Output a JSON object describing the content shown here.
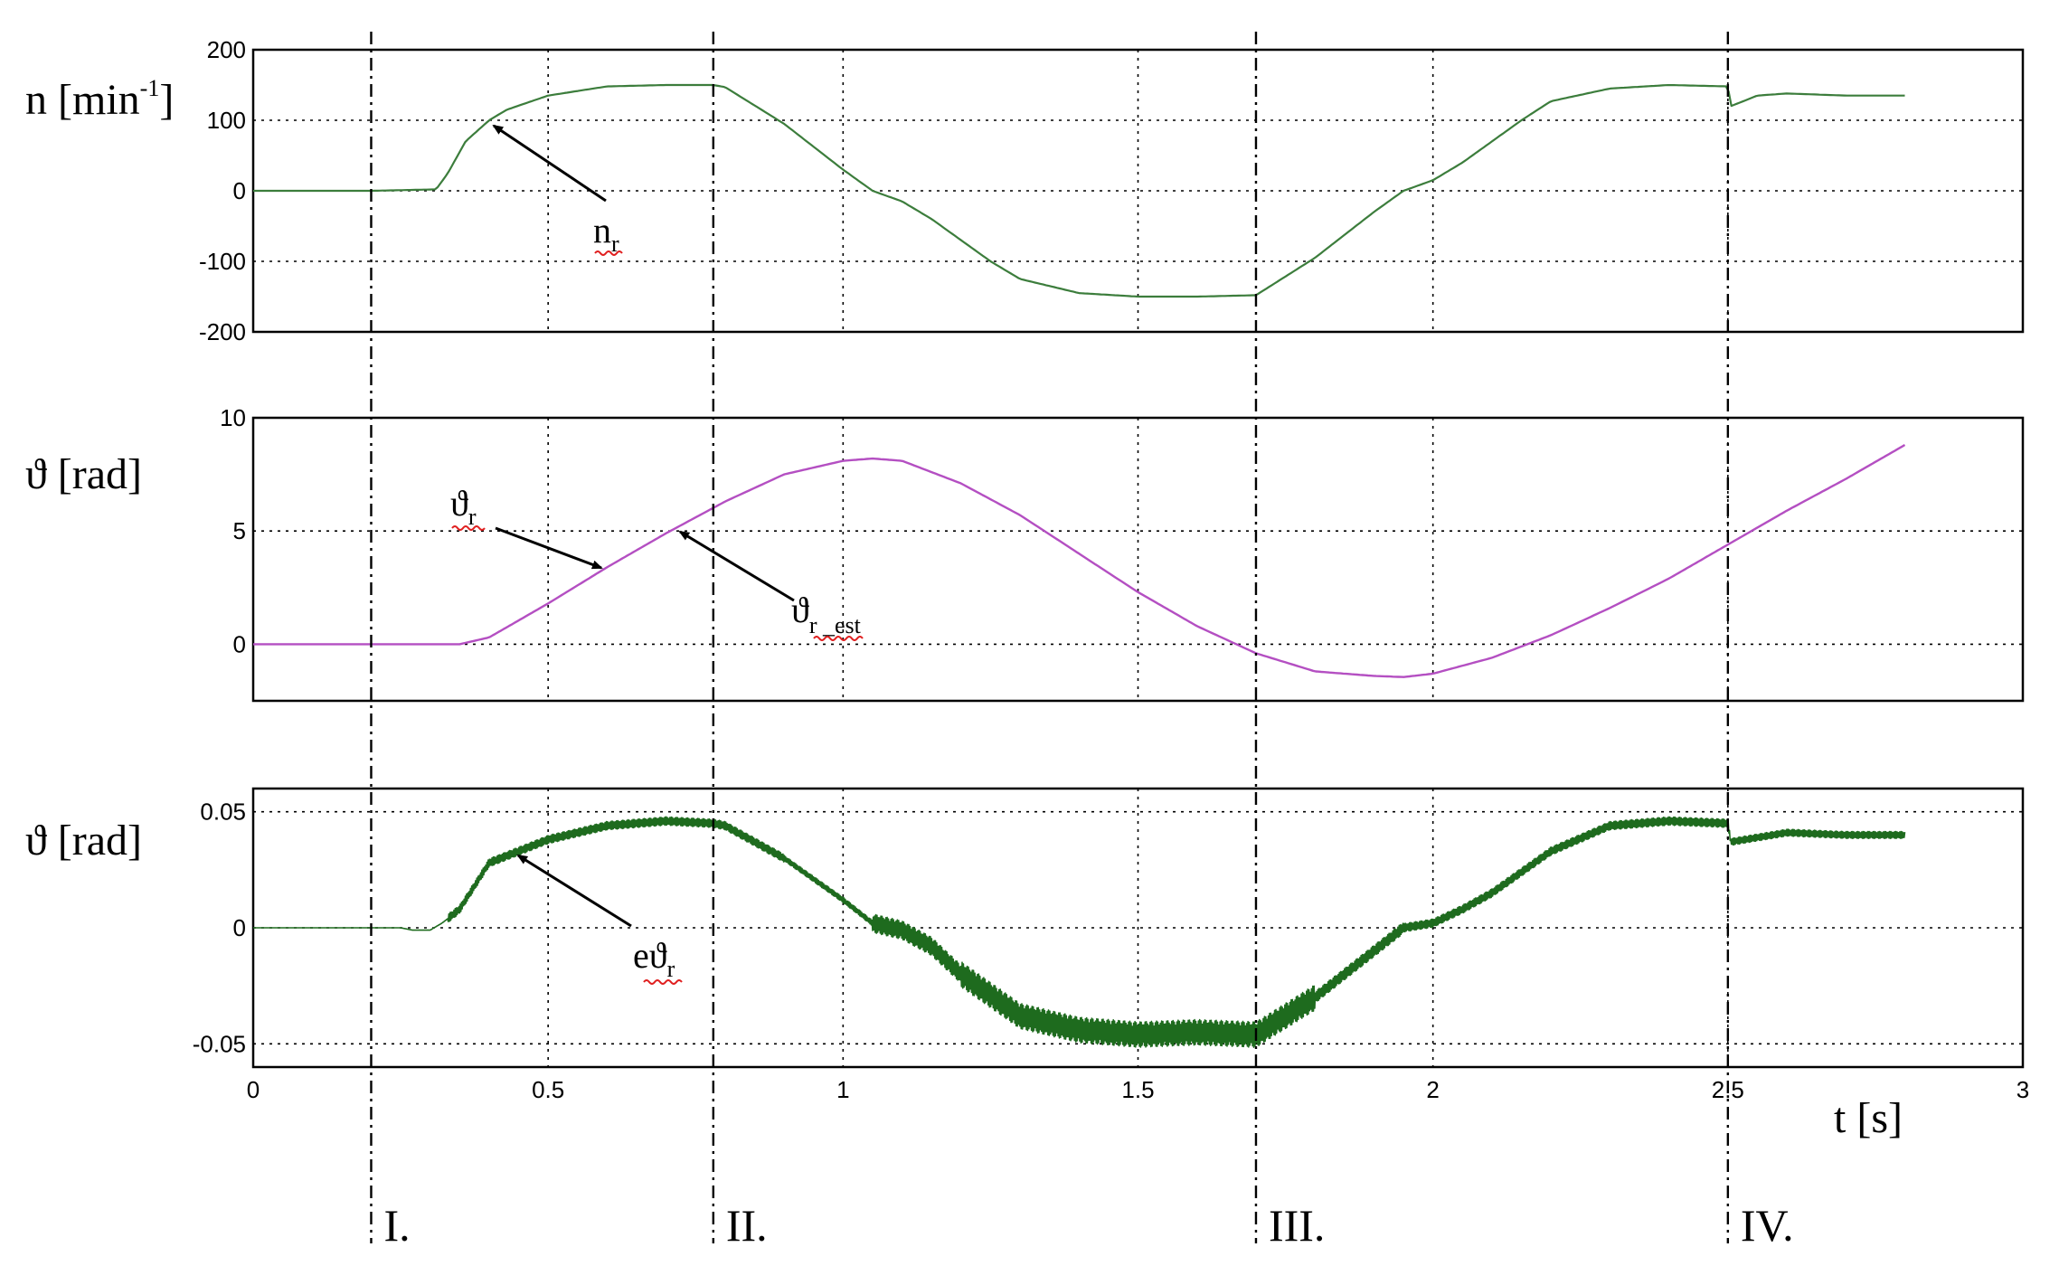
{
  "colors": {
    "speed": "#3c7d3c",
    "angle": "#b44fc2",
    "error": "#1e6b1e",
    "axis": "#000000",
    "grid": "#000000",
    "spell_underline": "#e02020"
  },
  "xaxis": {
    "min": 0,
    "max": 3,
    "ticks": [
      0,
      0.5,
      1,
      1.5,
      2,
      2.5,
      3
    ],
    "tick_labels": [
      "0",
      "0.5",
      "1",
      "1.5",
      "2",
      "2.5",
      "3"
    ],
    "label": "t [s]"
  },
  "phases": {
    "boundaries_s": [
      0.2,
      0.78,
      1.7,
      2.5
    ],
    "labels": [
      "I.",
      "II.",
      "III.",
      "IV."
    ]
  },
  "panels": {
    "speed": {
      "ylabel_main": "n [min",
      "ylabel_sup": "-1",
      "ylabel_end": "]",
      "ylim": [
        -200,
        200
      ],
      "yticks": [
        200,
        100,
        0,
        -100,
        -200
      ],
      "ytick_labels": [
        "200",
        "100",
        "0",
        "-100",
        "-200"
      ],
      "annotation": {
        "main": "n",
        "sub": "r"
      }
    },
    "angle": {
      "ylabel": "ϑ [rad]",
      "ylim": [
        -2.5,
        10
      ],
      "yticks": [
        10,
        5,
        0
      ],
      "ytick_labels": [
        "10",
        "5",
        "0"
      ],
      "annotation_1": {
        "main": "ϑ",
        "sub": "r"
      },
      "annotation_2": {
        "main": "ϑ",
        "sub": "r _est"
      }
    },
    "error": {
      "ylabel": "ϑ [rad]",
      "ylim": [
        -0.06,
        0.06
      ],
      "yticks": [
        0.05,
        0,
        -0.05
      ],
      "ytick_labels": [
        "0.05",
        "0",
        "-0.05"
      ],
      "annotation": {
        "main": "eϑ",
        "sub": "r"
      }
    }
  },
  "chart_data": [
    {
      "type": "line",
      "ylabel": "n [min-1]",
      "ylim": [
        -200,
        200
      ],
      "xlim": [
        0,
        3
      ],
      "grid": true,
      "series": [
        {
          "name": "n_r",
          "x": [
            0,
            0.2,
            0.31,
            0.33,
            0.36,
            0.4,
            0.43,
            0.5,
            0.6,
            0.7,
            0.78,
            0.8,
            0.9,
            1.0,
            1.05,
            1.1,
            1.15,
            1.2,
            1.25,
            1.3,
            1.4,
            1.5,
            1.6,
            1.7,
            1.8,
            1.9,
            1.95,
            2.0,
            2.05,
            2.1,
            2.15,
            2.2,
            2.3,
            2.4,
            2.5,
            2.505,
            2.55,
            2.6,
            2.7,
            2.8
          ],
          "y": [
            0,
            0,
            2,
            25,
            70,
            100,
            115,
            135,
            148,
            150,
            150,
            147,
            95,
            30,
            0,
            -15,
            -40,
            -70,
            -100,
            -125,
            -145,
            -150,
            -150,
            -148,
            -95,
            -30,
            0,
            15,
            40,
            70,
            100,
            127,
            145,
            150,
            148,
            120,
            135,
            138,
            135,
            135
          ]
        }
      ]
    },
    {
      "type": "line",
      "ylabel": "ϑ [rad]",
      "ylim": [
        -2.5,
        10
      ],
      "xlim": [
        0,
        3
      ],
      "grid": true,
      "series": [
        {
          "name": "ϑ_r",
          "x": [
            0,
            0.35,
            0.4,
            0.5,
            0.6,
            0.7,
            0.8,
            0.9,
            1.0,
            1.05,
            1.1,
            1.2,
            1.3,
            1.4,
            1.5,
            1.6,
            1.7,
            1.8,
            1.9,
            1.95,
            2.0,
            2.1,
            2.2,
            2.3,
            2.4,
            2.5,
            2.6,
            2.7,
            2.8
          ],
          "y": [
            0,
            0,
            0.3,
            1.8,
            3.4,
            4.9,
            6.3,
            7.5,
            8.1,
            8.2,
            8.1,
            7.1,
            5.7,
            4.0,
            2.3,
            0.8,
            -0.4,
            -1.2,
            -1.4,
            -1.45,
            -1.3,
            -0.6,
            0.4,
            1.6,
            2.9,
            4.4,
            5.9,
            7.3,
            8.8
          ]
        }
      ]
    },
    {
      "type": "line",
      "ylabel": "ϑ [rad]",
      "ylim": [
        -0.06,
        0.06
      ],
      "xlim": [
        0,
        3
      ],
      "grid": true,
      "series": [
        {
          "name": "eϑ_r",
          "x": [
            0,
            0.2,
            0.25,
            0.27,
            0.3,
            0.32,
            0.35,
            0.4,
            0.5,
            0.6,
            0.7,
            0.78,
            0.8,
            0.9,
            1.0,
            1.05,
            1.1,
            1.15,
            1.2,
            1.3,
            1.4,
            1.5,
            1.6,
            1.7,
            1.8,
            1.9,
            1.95,
            2.0,
            2.05,
            2.1,
            2.2,
            2.3,
            2.4,
            2.5,
            2.505,
            2.6,
            2.7,
            2.8
          ],
          "y": [
            0,
            0,
            0,
            -0.001,
            -0.001,
            0.002,
            0.008,
            0.028,
            0.038,
            0.044,
            0.046,
            0.045,
            0.044,
            0.03,
            0.012,
            0.002,
            -0.001,
            -0.008,
            -0.02,
            -0.038,
            -0.044,
            -0.046,
            -0.045,
            -0.046,
            -0.03,
            -0.01,
            0,
            0.002,
            0.008,
            0.015,
            0.033,
            0.044,
            0.046,
            0.045,
            0.037,
            0.041,
            0.04,
            0.04
          ]
        }
      ]
    }
  ]
}
